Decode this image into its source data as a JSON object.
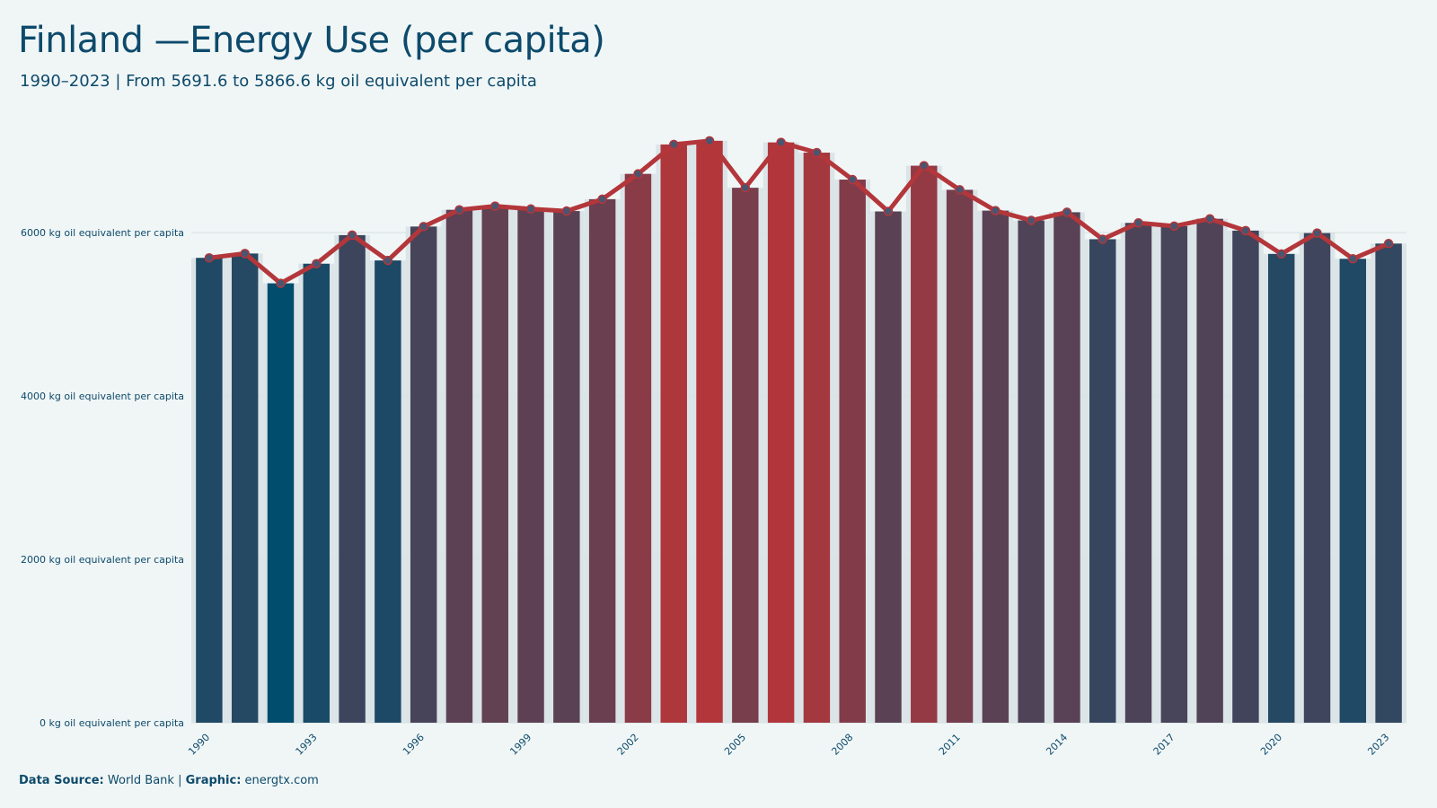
{
  "title": "Finland —Energy Use (per capita)",
  "subtitle": "1990–2023 | From 5691.6 to 5866.6 kg oil equivalent per capita",
  "footer": {
    "source_label": "Data Source:",
    "source_value": "World Bank",
    "separator": "|",
    "graphic_label": "Graphic:",
    "graphic_value": "energtx.com"
  },
  "colors": {
    "background": "#f0f6f6",
    "text": "#0d4a6b",
    "low": "#004d6e",
    "high": "#b3363b",
    "line": "#b3363b",
    "marker": "#4a5570",
    "grid": "#d5dee0",
    "band": "#d8e3e6"
  },
  "chart_data": {
    "type": "bar",
    "ylim": [
      0,
      7200
    ],
    "yticks": [
      0,
      2000,
      4000,
      6000
    ],
    "ytick_labels": [
      "0 kg oil equivalent per capita",
      "2000 kg oil equivalent per capita",
      "4000 kg oil equivalent per capita",
      "6000 kg oil equivalent per capita"
    ],
    "xtick_labels": [
      "1990",
      "1993",
      "1996",
      "1999",
      "2002",
      "2005",
      "2008",
      "2011",
      "2014",
      "2017",
      "2020",
      "2023"
    ],
    "grid": true,
    "categories": [
      1990,
      1991,
      1992,
      1993,
      1994,
      1995,
      1996,
      1997,
      1998,
      1999,
      2000,
      2001,
      2002,
      2003,
      2004,
      2005,
      2006,
      2007,
      2008,
      2009,
      2010,
      2011,
      2012,
      2013,
      2014,
      2015,
      2016,
      2017,
      2018,
      2019,
      2020,
      2021,
      2022,
      2023
    ],
    "values": [
      5691.6,
      5745,
      5380,
      5620,
      5970,
      5660,
      6075,
      6280,
      6325,
      6290,
      6265,
      6410,
      6720,
      7080,
      7125,
      6550,
      7105,
      6980,
      6650,
      6260,
      6820,
      6525,
      6270,
      6150,
      6250,
      5920,
      6120,
      6080,
      6170,
      6025,
      5740,
      5995,
      5680,
      5866.6
    ]
  }
}
